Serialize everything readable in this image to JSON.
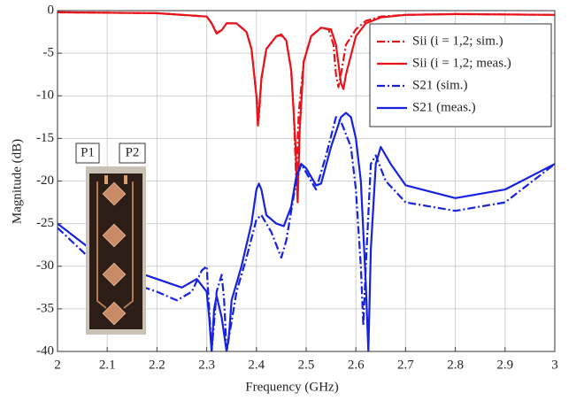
{
  "chart_data": {
    "type": "line",
    "xlabel": "Frequency (GHz)",
    "ylabel": "Magnitude (dB)",
    "xlim": [
      2,
      3
    ],
    "ylim": [
      -40,
      0
    ],
    "xticks": [
      2,
      2.1,
      2.2,
      2.3,
      2.4,
      2.5,
      2.6,
      2.7,
      2.8,
      2.9,
      3
    ],
    "yticks": [
      -40,
      -35,
      -30,
      -25,
      -20,
      -15,
      -10,
      -5,
      0
    ],
    "grid": true,
    "legend": "upper right",
    "annotations": [
      {
        "text": "P1"
      },
      {
        "text": "P2"
      }
    ],
    "series": [
      {
        "name": "Sii (i = 1,2; sim.)",
        "color": "#e8141b",
        "dash": "dashdot",
        "x": [
          2.0,
          2.2,
          2.3,
          2.31,
          2.32,
          2.33,
          2.34,
          2.36,
          2.38,
          2.39,
          2.4,
          2.405,
          2.41,
          2.42,
          2.44,
          2.45,
          2.46,
          2.47,
          2.475,
          2.48,
          2.485,
          2.495,
          2.51,
          2.53,
          2.545,
          2.555,
          2.56,
          2.565,
          2.57,
          2.58,
          2.6,
          2.62,
          2.65,
          2.7,
          2.8,
          3.0
        ],
        "values": [
          -0.2,
          -0.3,
          -0.7,
          -1.5,
          -2.6,
          -2.3,
          -1.5,
          -1.5,
          -2.5,
          -4.5,
          -10,
          -12.5,
          -8,
          -4.5,
          -3,
          -2.9,
          -3.5,
          -7,
          -12,
          -20,
          -12,
          -6,
          -3,
          -2,
          -2.2,
          -4,
          -7.5,
          -9,
          -7.5,
          -4,
          -2.2,
          -1.2,
          -0.7,
          -0.5,
          -0.4,
          -0.5
        ]
      },
      {
        "name": "Sii (i = 1,2; meas.)",
        "color": "#e8141b",
        "dash": "solid",
        "x": [
          2.0,
          2.2,
          2.3,
          2.31,
          2.32,
          2.33,
          2.34,
          2.36,
          2.38,
          2.39,
          2.4,
          2.403,
          2.41,
          2.42,
          2.44,
          2.45,
          2.46,
          2.47,
          2.478,
          2.483,
          2.487,
          2.495,
          2.51,
          2.53,
          2.55,
          2.56,
          2.57,
          2.575,
          2.58,
          2.6,
          2.62,
          2.65,
          2.7,
          2.8,
          3.0
        ],
        "values": [
          -0.2,
          -0.3,
          -0.7,
          -1.5,
          -2.7,
          -2.3,
          -1.5,
          -1.5,
          -2.5,
          -4.5,
          -10,
          -13.5,
          -8,
          -4.5,
          -3,
          -2.8,
          -3.5,
          -7,
          -15,
          -22.5,
          -14,
          -6,
          -3,
          -2,
          -2.2,
          -4,
          -8.5,
          -9.2,
          -7.5,
          -3,
          -1.5,
          -0.8,
          -0.5,
          -0.4,
          -0.5
        ]
      },
      {
        "name": "S21 (sim.)",
        "color": "#1622e0",
        "dash": "dashdot",
        "x": [
          2.0,
          2.1,
          2.2,
          2.24,
          2.27,
          2.29,
          2.3,
          2.31,
          2.32,
          2.33,
          2.335,
          2.34,
          2.36,
          2.38,
          2.4,
          2.41,
          2.43,
          2.45,
          2.46,
          2.48,
          2.49,
          2.5,
          2.52,
          2.54,
          2.56,
          2.57,
          2.59,
          2.6,
          2.61,
          2.615,
          2.62,
          2.63,
          2.64,
          2.66,
          2.7,
          2.8,
          2.9,
          3.0
        ],
        "values": [
          -25.5,
          -31,
          -33,
          -34,
          -33,
          -30.5,
          -30,
          -40,
          -33,
          -31,
          -34,
          -40,
          -33,
          -29,
          -24.5,
          -24,
          -26,
          -29,
          -27,
          -20,
          -18,
          -19,
          -21,
          -17,
          -12.5,
          -13,
          -16,
          -21,
          -30,
          -37,
          -30,
          -18,
          -17,
          -20,
          -22.5,
          -23.5,
          -22.5,
          -18
        ]
      },
      {
        "name": "S21 (meas.)",
        "color": "#1622e0",
        "dash": "solid",
        "x": [
          2.0,
          2.1,
          2.2,
          2.25,
          2.28,
          2.3,
          2.305,
          2.31,
          2.315,
          2.32,
          2.33,
          2.34,
          2.345,
          2.35,
          2.37,
          2.39,
          2.4,
          2.405,
          2.41,
          2.42,
          2.44,
          2.455,
          2.47,
          2.48,
          2.49,
          2.5,
          2.52,
          2.53,
          2.55,
          2.57,
          2.58,
          2.59,
          2.6,
          2.61,
          2.62,
          2.625,
          2.63,
          2.64,
          2.65,
          2.67,
          2.7,
          2.8,
          2.9,
          3.0
        ],
        "values": [
          -25,
          -29.5,
          -31.5,
          -32.5,
          -31.5,
          -33,
          -36,
          -40,
          -35,
          -33.5,
          -36,
          -40,
          -38,
          -34,
          -30,
          -25,
          -21,
          -20.3,
          -21,
          -24,
          -25,
          -25.3,
          -23,
          -19.5,
          -18,
          -18.5,
          -20.5,
          -20.3,
          -16,
          -12.5,
          -12,
          -12.5,
          -15,
          -20,
          -32,
          -40,
          -28,
          -18,
          -16,
          -18,
          -20.5,
          -22,
          -21,
          -18
        ]
      }
    ]
  }
}
